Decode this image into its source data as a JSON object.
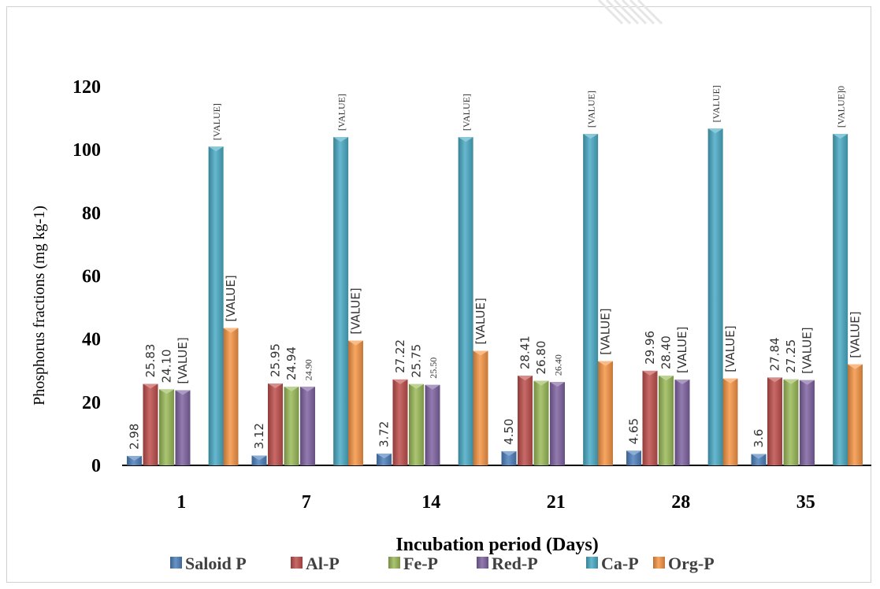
{
  "chart_data": {
    "type": "bar",
    "title": "",
    "xlabel": "Incubation period (Days)",
    "ylabel": "Phosphorus fractions (mg kg-1)",
    "ylim": [
      0,
      120
    ],
    "yticks": [
      "0",
      "20",
      "40",
      "60",
      "80",
      "100",
      "120"
    ],
    "categories": [
      "1",
      "7",
      "14",
      "21",
      "28",
      "35"
    ],
    "legend_position": "bottom",
    "grid": false,
    "series": [
      {
        "name": "Saloid P",
        "color": "#4f81bd",
        "values": [
          2.98,
          3.12,
          3.72,
          4.5,
          4.65,
          3.6
        ],
        "labels": [
          "2.98",
          "3.12",
          "3.72",
          "4.50",
          "4.65",
          "3.6"
        ]
      },
      {
        "name": "Al-P",
        "color": "#c0504d",
        "values": [
          25.83,
          25.95,
          27.22,
          28.41,
          29.96,
          27.84
        ],
        "labels": [
          "25.83",
          "25.95",
          "27.22",
          "28.41",
          "29.96",
          "27.84"
        ]
      },
      {
        "name": "Fe-P",
        "color": "#9bbb59",
        "values": [
          24.1,
          24.94,
          25.75,
          26.8,
          28.4,
          27.25
        ],
        "labels": [
          "24.10",
          "24.94",
          "25.75",
          "26.80",
          "28.40",
          "27.25"
        ]
      },
      {
        "name": "Red-P",
        "color": "#8064a2",
        "values": [
          23.8,
          24.9,
          25.5,
          26.4,
          27.2,
          27.0
        ],
        "labels": [
          "[VALUE]",
          "24.90",
          "25.50",
          "26.40",
          "[VALUE]",
          "[VALUE]"
        ]
      },
      {
        "name": "Ca-P",
        "color": "#4bacc6",
        "values": [
          101,
          104,
          104,
          105,
          106.7,
          105
        ],
        "labels": [
          "[VALUE]",
          "[VALUE]",
          "[VALUE]",
          "[VALUE]",
          "[VALUE]",
          "[VALUE]0"
        ]
      },
      {
        "name": "Org-P",
        "color": "#f79646",
        "values": [
          43.5,
          39.5,
          36.3,
          33.0,
          27.5,
          32.0
        ],
        "labels": [
          "[VALUE]",
          "[VALUE]",
          "[VALUE]",
          "[VALUE]",
          "[VALUE]",
          "[VALUE]"
        ]
      }
    ]
  }
}
